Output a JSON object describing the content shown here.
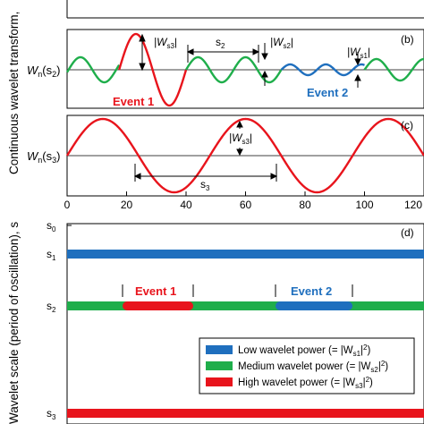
{
  "left_labels": {
    "wavelet_axis": "Continuous wavelet transform,",
    "scale_axis": "Wavelet scale (period of oscillation), s"
  },
  "panel_b": {
    "tag": "(b)",
    "ylabel_main": "W",
    "ylabel_sub": "n",
    "ylabel_arg": "(s",
    "ylabel_arg_sub": "2",
    "ylabel_close": ")",
    "ann_ws3": "|W",
    "ann_ws3_sub": "s3",
    "ann_ws2": "|W",
    "ann_ws2_sub": "s2",
    "ann_ws1": "|W",
    "ann_ws1_sub": "s1",
    "ann_s2": "s",
    "ann_s2_sub": "2",
    "event1": "Event 1",
    "event2": "Event 2"
  },
  "panel_c": {
    "tag": "(c)",
    "ylabel_main": "W",
    "ylabel_sub": "n",
    "ylabel_arg": "(s",
    "ylabel_arg_sub": "3",
    "ylabel_close": ")",
    "ann_ws3": "|W",
    "ann_ws3_sub": "s3",
    "ann_s3": "s",
    "ann_s3_sub": "3",
    "x_ticks": [
      "0",
      "20",
      "40",
      "60",
      "80",
      "100",
      "120"
    ]
  },
  "panel_d": {
    "tag": "(d)",
    "y_ticks": [
      {
        "main": "s",
        "sub": "0"
      },
      {
        "main": "s",
        "sub": "1"
      },
      {
        "main": "s",
        "sub": "2"
      },
      {
        "main": "s",
        "sub": "3"
      }
    ],
    "event1": "Event 1",
    "event2": "Event 2",
    "legend": [
      {
        "text": "Low wavelet power (= |W",
        "sub": "s1",
        "tail": "|",
        "sup": "2",
        "end": ")",
        "color": "#1f6fbe"
      },
      {
        "text": "Medium wavelet power (= |W",
        "sub": "s2",
        "tail": "|",
        "sup": "2",
        "end": ")",
        "color": "#1fae4b"
      },
      {
        "text": "High wavelet power (= |W",
        "sub": "s3",
        "tail": "|",
        "sup": "2",
        "end": ")",
        "color": "#e8141c"
      }
    ]
  },
  "colors": {
    "low": "#1f6fbe",
    "medium": "#1fae4b",
    "high": "#e8141c"
  }
}
